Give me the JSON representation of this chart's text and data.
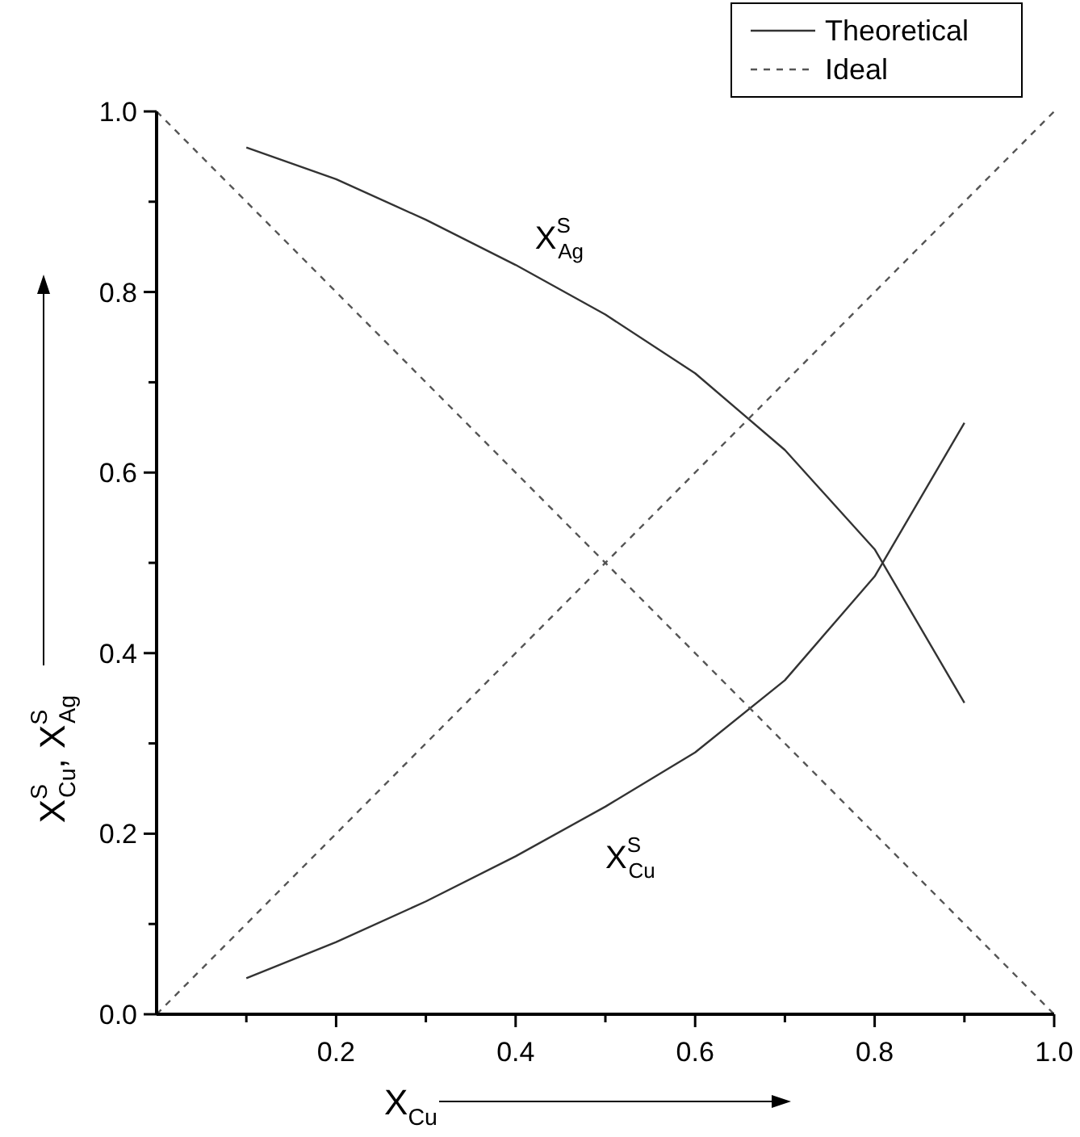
{
  "chart_data": {
    "type": "line",
    "xlabel": "X$_{Cu}$",
    "ylabel": "X$^{S}$$_{Cu}$, X$^{S}$$_{Ag}$",
    "xlim": [
      0,
      1
    ],
    "ylim": [
      0,
      1
    ],
    "xticks": [
      {
        "value": 0.1,
        "label": null
      },
      {
        "value": 0.2,
        "label": "0.2"
      },
      {
        "value": 0.3,
        "label": null
      },
      {
        "value": 0.4,
        "label": "0.4"
      },
      {
        "value": 0.5,
        "label": null
      },
      {
        "value": 0.6,
        "label": "0.6"
      },
      {
        "value": 0.7,
        "label": null
      },
      {
        "value": 0.8,
        "label": "0.8"
      },
      {
        "value": 0.9,
        "label": null
      },
      {
        "value": 1,
        "label": "1.0"
      }
    ],
    "yticks": [
      {
        "value": 0,
        "label": "0.0"
      },
      {
        "value": 0.1,
        "label": null
      },
      {
        "value": 0.2,
        "label": "0.2"
      },
      {
        "value": 0.3,
        "label": null
      },
      {
        "value": 0.4,
        "label": "0.4"
      },
      {
        "value": 0.5,
        "label": null
      },
      {
        "value": 0.6,
        "label": "0.6"
      },
      {
        "value": 0.7,
        "label": null
      },
      {
        "value": 0.8,
        "label": "0.8"
      },
      {
        "value": 0.9,
        "label": null
      },
      {
        "value": 1,
        "label": "1.0"
      }
    ],
    "grid": false,
    "legend": "top right",
    "marker": "none",
    "series": [
      {
        "name": "Theoretical",
        "color": "#333333",
        "line_style": "solid",
        "x": [
          0.1,
          0.2,
          0.3,
          0.4,
          0.5,
          0.6,
          0.7,
          0.8,
          0.9
        ],
        "values": [
          0.96,
          0.925,
          0.88,
          0.83,
          0.775,
          0.71,
          0.625,
          0.515,
          0.345
        ]
      },
      {
        "color": "#333333",
        "line_style": "solid",
        "x": [
          0.1,
          0.2,
          0.3,
          0.4,
          0.5,
          0.6,
          0.7,
          0.8,
          0.9
        ],
        "values": [
          0.04,
          0.08,
          0.125,
          0.175,
          0.23,
          0.29,
          0.37,
          0.485,
          0.655
        ]
      },
      {
        "name": "Ideal",
        "color": "#555555",
        "line_style": "dashed",
        "x": [
          0,
          1
        ],
        "values": [
          0,
          1
        ]
      },
      {
        "color": "#555555",
        "line_style": "dashed",
        "x": [
          0,
          1
        ],
        "values": [
          1,
          0
        ]
      }
    ],
    "annotations": [
      "X$^{S}$$_{Ag}$",
      "X$^{S}$$_{Cu}$"
    ]
  }
}
